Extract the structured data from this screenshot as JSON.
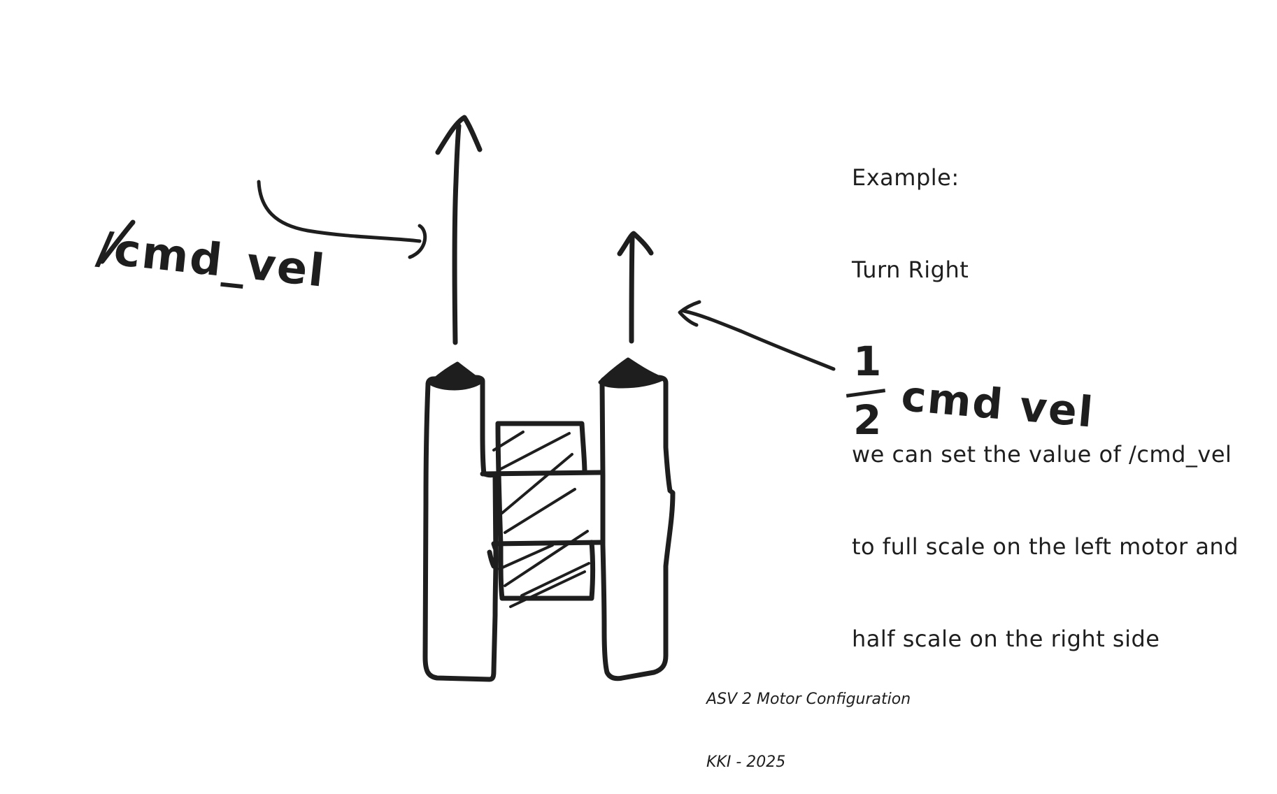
{
  "note": {
    "lines": [
      "Example:",
      "Turn Right",
      "",
      "we can set the value of /cmd_vel",
      "to full scale on the left motor and",
      "half scale on the right side"
    ]
  },
  "labels": {
    "left_command": "/cmd_vel",
    "right_fraction_numerator": "1",
    "right_fraction_denominator": "2",
    "right_command": "cmd vel"
  },
  "caption": {
    "title": "ASV 2 Motor Configuration",
    "credit": "KKI - 2025"
  },
  "diagram": {
    "stroke_color": "#1e1e1e",
    "background": "#ffffff",
    "left_motor_thrust": "full",
    "right_motor_thrust": "half"
  }
}
